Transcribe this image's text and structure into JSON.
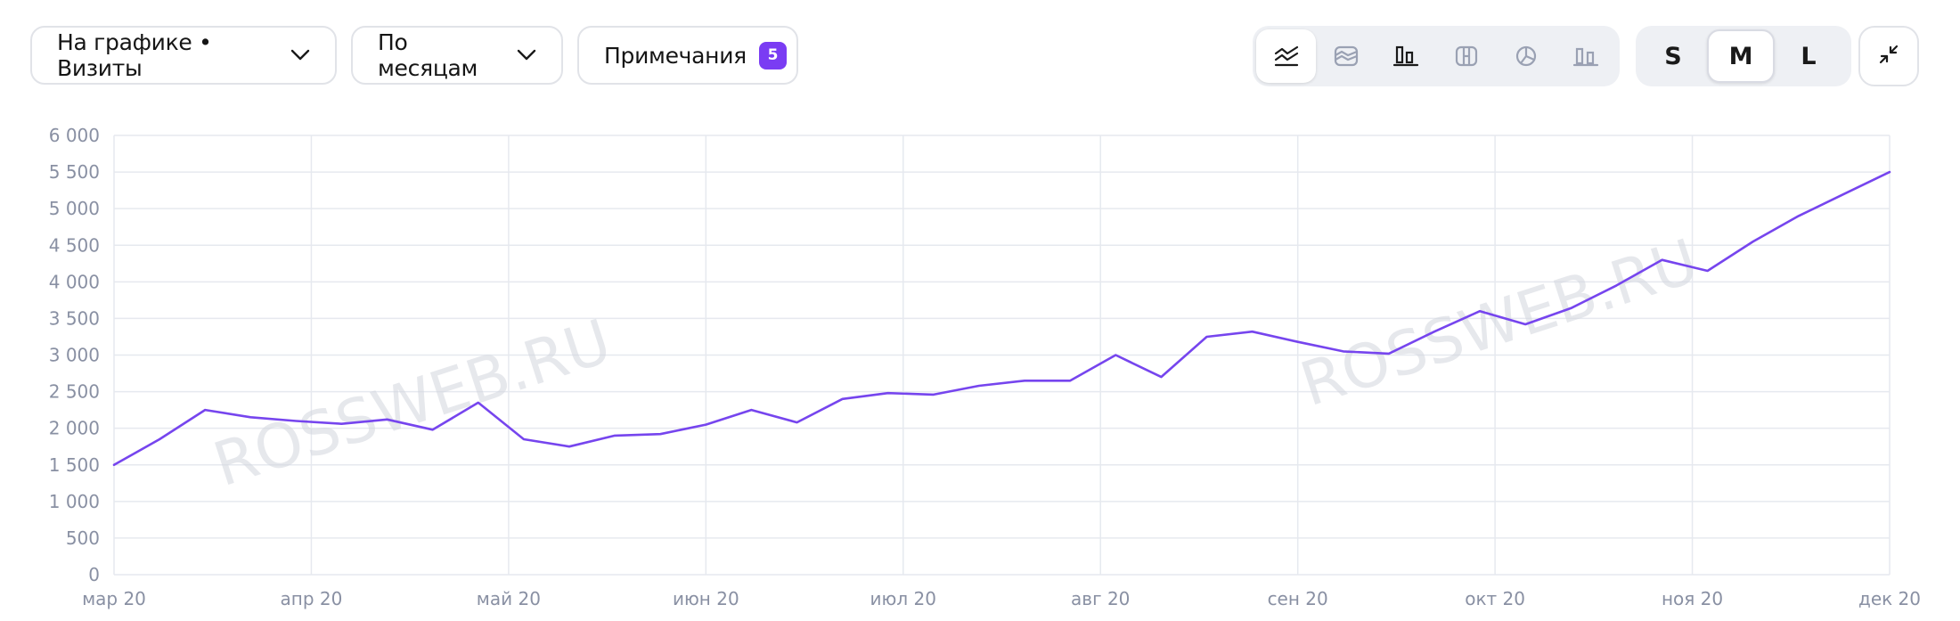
{
  "toolbar": {
    "chart_metric_label": "На графике • Визиты",
    "grouping_label": "По месяцам",
    "notes_label": "Примечания",
    "notes_count": "5",
    "chart_types": [
      {
        "icon": "line-chart-icon",
        "active": true
      },
      {
        "icon": "area-chart-icon",
        "active": false
      },
      {
        "icon": "bar-chart-icon",
        "active": false
      },
      {
        "icon": "stacked-chart-icon",
        "active": false
      },
      {
        "icon": "pie-chart-icon",
        "active": false
      },
      {
        "icon": "column-chart-icon",
        "active": false
      }
    ],
    "sizes": [
      {
        "label": "S",
        "active": false
      },
      {
        "label": "M",
        "active": true
      },
      {
        "label": "L",
        "active": false
      }
    ],
    "fullscreen_icon": "collapse-icon"
  },
  "watermarks": [
    "ROSSWEB.RU",
    "ROSSWEB.RU"
  ],
  "colors": {
    "line": "#7645ee",
    "grid": "#e6e9ef",
    "badge": "#7a3cf3"
  },
  "chart_data": {
    "type": "line",
    "title": "",
    "xlabel": "",
    "ylabel": "",
    "ylim": [
      0,
      6000
    ],
    "yticks": [
      0,
      500,
      1000,
      1500,
      2000,
      2500,
      3000,
      3500,
      4000,
      4500,
      5000,
      5500,
      6000
    ],
    "ytick_labels": [
      "0",
      "500",
      "1 000",
      "1 500",
      "2 000",
      "2 500",
      "3 000",
      "3 500",
      "4 000",
      "4 500",
      "5 000",
      "5 500",
      "6 000"
    ],
    "xticks": [
      "мар 20",
      "апр 20",
      "май 20",
      "июн 20",
      "июл 20",
      "авг 20",
      "сен 20",
      "окт 20",
      "ноя 20",
      "дек 20"
    ],
    "grid": true,
    "series": [
      {
        "values": [
          1500,
          1850,
          2250,
          2150,
          2100,
          2060,
          2120,
          1980,
          2350,
          1850,
          1750,
          1900,
          1920,
          2050,
          2250,
          2080,
          2400,
          2480,
          2460,
          2580,
          2650,
          2650,
          3000,
          2700,
          3250,
          3320,
          3180,
          3050,
          3020,
          3320,
          3600,
          3420,
          3640,
          3950,
          4300,
          4150,
          4550,
          4900,
          5200,
          5500
        ]
      }
    ]
  }
}
